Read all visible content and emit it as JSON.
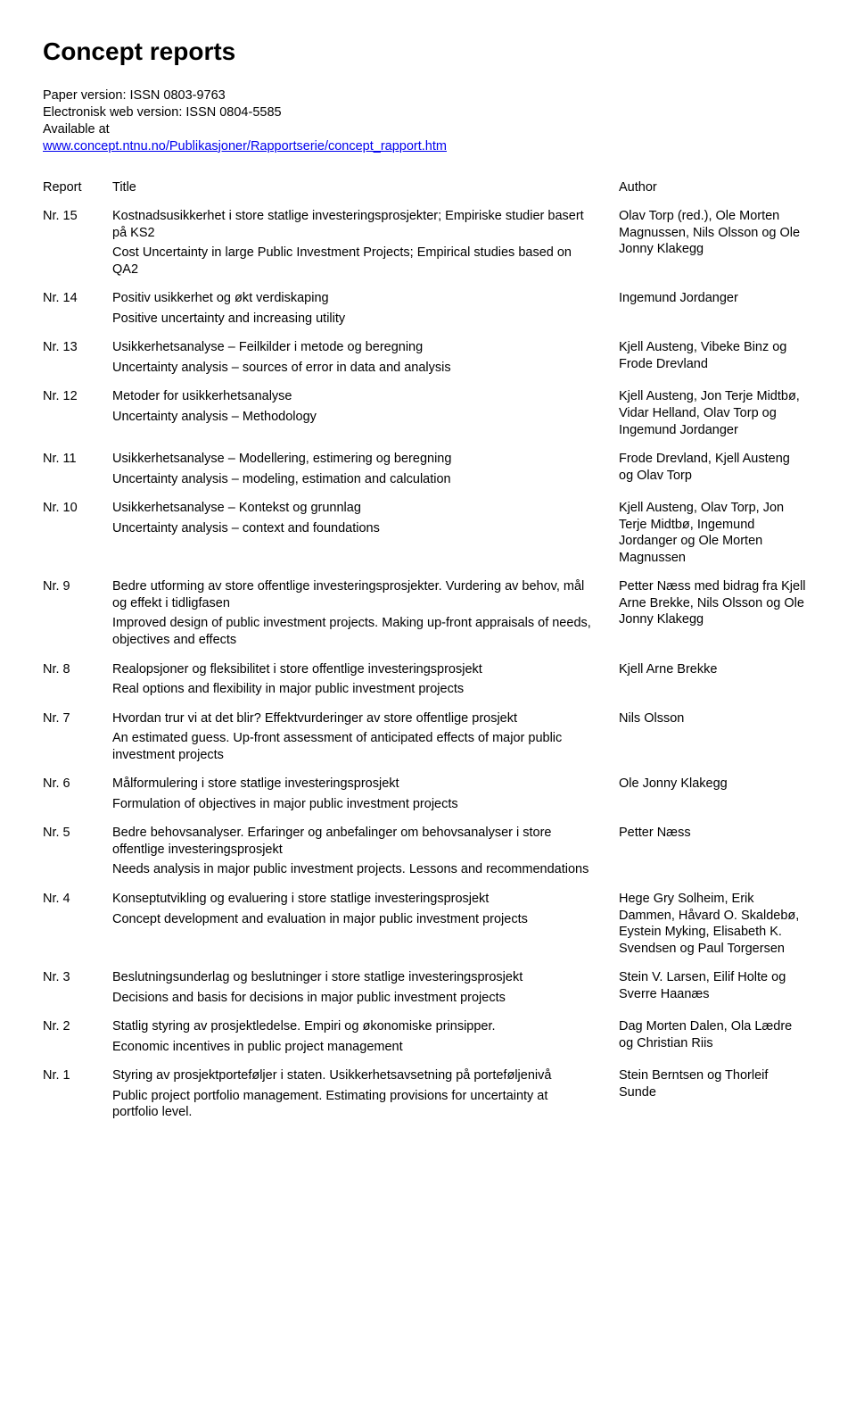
{
  "page_title": "Concept reports",
  "meta": {
    "paper_line": "Paper version: ISSN 0803-9763",
    "web_line": "Electronisk web version: ISSN 0804-5585",
    "available_at": "Available at",
    "url": "www.concept.ntnu.no/Publikasjoner/Rapportserie/concept_rapport.htm"
  },
  "headers": {
    "report": "Report",
    "title": "Title",
    "author": "Author"
  },
  "rows": [
    {
      "report": "Nr. 15",
      "title": "Kostnadsusikkerhet i store statlige investeringsprosjekter; Empiriske studier basert på KS2",
      "sub": "Cost Uncertainty in large Public Investment Projects; Empirical studies based on QA2",
      "author": "Olav Torp (red.), Ole Morten Magnussen, Nils Olsson og Ole Jonny Klakegg"
    },
    {
      "report": "Nr. 14",
      "title": "Positiv usikkerhet og økt verdiskaping",
      "sub": "Positive uncertainty and increasing utility",
      "author": "Ingemund Jordanger"
    },
    {
      "report": "Nr. 13",
      "title": "Usikkerhetsanalyse – Feilkilder i metode og beregning",
      "sub": "Uncertainty analysis – sources of error in data and analysis",
      "author": "Kjell Austeng, Vibeke Binz og Frode Drevland"
    },
    {
      "report": "Nr. 12",
      "title": "Metoder for usikkerhetsanalyse",
      "sub": "Uncertainty analysis – Methodology",
      "author": "Kjell Austeng, Jon Terje Midtbø, Vidar Helland, Olav Torp og Ingemund Jordanger"
    },
    {
      "report": "Nr. 11",
      "title": "Usikkerhetsanalyse – Modellering, estimering og beregning",
      "sub": "Uncertainty analysis – modeling, estimation and calculation",
      "author": "Frode Drevland, Kjell Austeng og Olav Torp"
    },
    {
      "report": "Nr. 10",
      "title": "Usikkerhetsanalyse – Kontekst og grunnlag",
      "sub": "Uncertainty analysis – context and foundations",
      "author": "Kjell Austeng, Olav Torp, Jon Terje Midtbø, Ingemund Jordanger og Ole Morten Magnussen"
    },
    {
      "report": "Nr. 9",
      "title": "Bedre utforming av store offentlige investeringsprosjekter. Vurdering av behov, mål og effekt i tidligfasen",
      "sub": "Improved design of public investment projects. Making up-front appraisals of needs, objectives and effects",
      "author": "Petter Næss med bidrag fra Kjell Arne Brekke, Nils Olsson og Ole Jonny Klakegg"
    },
    {
      "report": "Nr. 8",
      "title": "Realopsjoner og fleksibilitet i store offentlige investeringsprosjekt",
      "sub": "Real options and flexibility in major public investment projects",
      "author": "Kjell Arne Brekke"
    },
    {
      "report": "Nr. 7",
      "title": "Hvordan trur vi at det blir? Effektvurderinger av store offentlige prosjekt",
      "sub": "An estimated guess. Up-front assessment of anticipated effects of major public investment projects",
      "author": "Nils Olsson"
    },
    {
      "report": "Nr. 6",
      "title": "Målformulering i store statlige investeringsprosjekt",
      "sub": "Formulation of objectives in major public investment projects",
      "author": "Ole Jonny Klakegg"
    },
    {
      "report": "Nr. 5",
      "title": "Bedre behovsanalyser. Erfaringer og anbefalinger om behovsanalyser i store offentlige investeringsprosjekt",
      "sub": "Needs analysis in major public investment projects. Lessons and recommendations",
      "author": "Petter Næss"
    },
    {
      "report": "Nr. 4",
      "title": "Konseptutvikling og evaluering i store statlige investeringsprosjekt",
      "sub": "Concept development and evaluation in major public investment projects",
      "author": "Hege Gry Solheim, Erik Dammen, Håvard O. Skaldebø, Eystein Myking, Elisabeth K. Svendsen og Paul Torgersen"
    },
    {
      "report": "Nr. 3",
      "title": "Beslutningsunderlag og beslutninger i store statlige investeringsprosjekt",
      "sub": "Decisions and basis for decisions in major public investment projects",
      "author": "Stein V. Larsen, Eilif Holte og Sverre Haanæs"
    },
    {
      "report": "Nr. 2",
      "title": "Statlig styring av prosjektledelse. Empiri og økonomiske prinsipper.",
      "sub": "Economic incentives in public project management",
      "author": "Dag Morten Dalen, Ola Lædre og Christian Riis"
    },
    {
      "report": "Nr. 1",
      "title": "Styring av prosjektporteføljer i staten. Usikkerhetsavsetning på porteføljenivå",
      "sub": "Public project portfolio management. Estimating provisions for uncertainty at portfolio level.",
      "author": "Stein Berntsen og Thorleif Sunde"
    }
  ]
}
